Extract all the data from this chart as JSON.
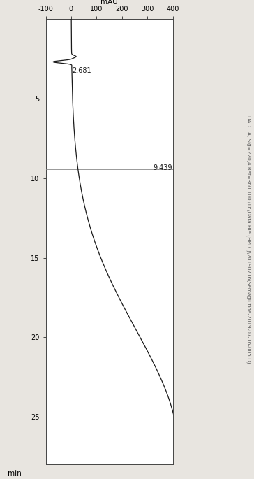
{
  "xlim": [
    -100,
    400
  ],
  "ylim_min": 0,
  "ylim_max": 28,
  "xticks": [
    -100,
    0,
    100,
    200,
    300,
    400
  ],
  "yticks": [
    5,
    10,
    15,
    20,
    25
  ],
  "xlabel": "mAU",
  "ylabel": "min",
  "peak1_time": 2.681,
  "peak1_label": "2.681",
  "peak2_time": 9.439,
  "peak2_label": "9.439",
  "annotation_text": "DAD1 A, Sig=220,4 Ref=360,100 (D:\\Data File (HPLC)\\20190716\\Semaglutide-2019-07-16-005.D)",
  "bg_color": "#e8e5e0",
  "plot_bg_color": "#ffffff",
  "line_color": "#1a1a1a",
  "anno_color": "#555555",
  "peak_line_color": "#888888",
  "tick_fontsize": 7,
  "anno_fontsize": 5.2,
  "label_fontsize": 7.5
}
